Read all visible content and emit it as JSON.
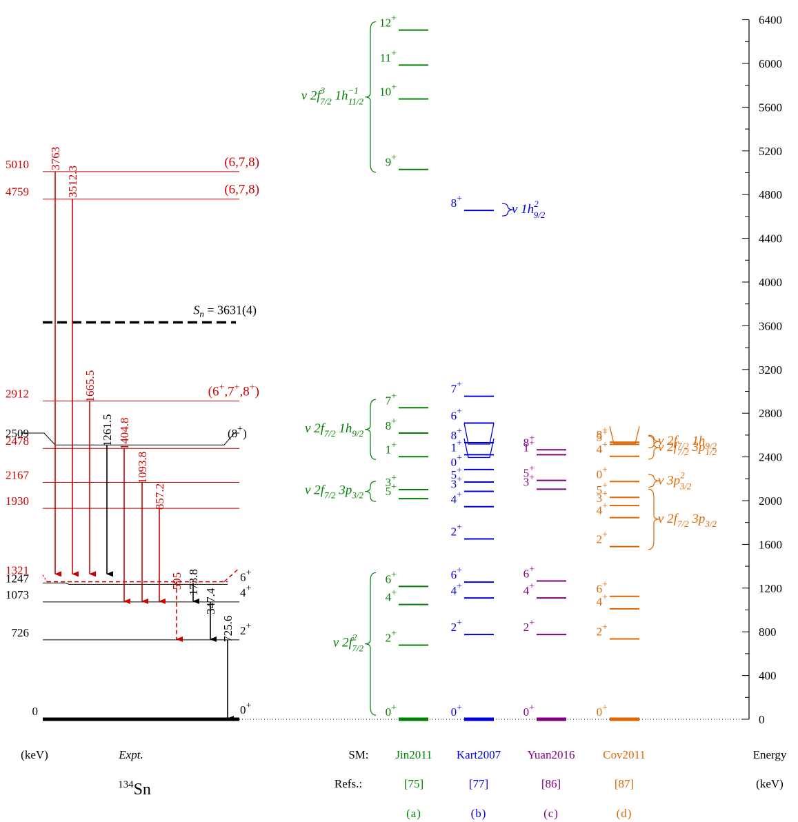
{
  "colors": {
    "expt": "#000000",
    "red": "#cc0000",
    "jin": "#008000",
    "kart": "#0000dd",
    "yuan": "#800080",
    "cov": "#dd6600"
  },
  "energy_axis": {
    "range": [
      0,
      6400
    ],
    "major_ticks": [
      0,
      400,
      800,
      1200,
      1600,
      2000,
      2400,
      2800,
      3200,
      3600,
      4000,
      4400,
      4800,
      5200,
      5600,
      6000,
      6400
    ],
    "title_line1": "Energy",
    "title_line2": "(keV)"
  },
  "footer": {
    "kev_label": "(keV)",
    "expt_label": "Expt.",
    "nucleus_mass": "134",
    "nucleus_symbol": "Sn",
    "sm_label": "SM:",
    "refs_label": "Refs.:"
  },
  "columns": [
    {
      "key": "jin",
      "name": "Jin2011",
      "ref": "[75]",
      "panel": "(a)"
    },
    {
      "key": "kart",
      "name": "Kart2007",
      "ref": "[77]",
      "panel": "(b)"
    },
    {
      "key": "yuan",
      "name": "Yuan2016",
      "ref": "[86]",
      "panel": "(c)"
    },
    {
      "key": "cov",
      "name": "Cov2011",
      "ref": "[87]",
      "panel": "(d)"
    }
  ],
  "expt": {
    "sn_label": "S",
    "sn_sub": "n",
    "sn_value": " = 3631(4)",
    "sn_energy": 3631,
    "levels": [
      {
        "energy": 0,
        "label": "0",
        "spin": "0",
        "parity": "+",
        "color": "expt",
        "thick": true
      },
      {
        "energy": 726,
        "label": "726",
        "spin": "2",
        "parity": "+",
        "color": "expt"
      },
      {
        "energy": 1073,
        "label": "1073",
        "spin": "4",
        "parity": "+",
        "color": "expt"
      },
      {
        "energy": 1247,
        "label": "1247",
        "spin": "6",
        "parity": "+",
        "color": "expt"
      },
      {
        "energy": 1321,
        "label": "1321",
        "spin": "",
        "parity": "",
        "color": "red"
      },
      {
        "energy": 1930,
        "label": "1930",
        "spin": "",
        "parity": "",
        "color": "red"
      },
      {
        "energy": 2167,
        "label": "2167",
        "spin": "",
        "parity": "",
        "color": "red"
      },
      {
        "energy": 2478,
        "label": "2478",
        "spin": "",
        "parity": "",
        "color": "red"
      },
      {
        "energy": 2509,
        "label": "2509",
        "spin": "(8",
        "parity": "+",
        "spin_close": ")",
        "color": "expt"
      },
      {
        "energy": 2912,
        "label": "2912",
        "spin": "(6+,7+,8+)",
        "color": "red"
      },
      {
        "energy": 4759,
        "label": "4759",
        "spin": "(6,7,8)",
        "color": "red"
      },
      {
        "energy": 5010,
        "label": "5010",
        "spin": "(6,7,8)",
        "color": "red"
      }
    ],
    "transitions": [
      {
        "from": 5010,
        "to": 1247,
        "label": "3763",
        "color": "red"
      },
      {
        "from": 4759,
        "to": 1247,
        "label": "3512.3",
        "color": "red"
      },
      {
        "from": 2912,
        "to": 1247,
        "label": "1665.5",
        "color": "red"
      },
      {
        "from": 2509,
        "to": 1247,
        "label": "1261.5",
        "color": "expt"
      },
      {
        "from": 2478,
        "to": 1073,
        "label": "1404.8",
        "color": "red"
      },
      {
        "from": 2167,
        "to": 1073,
        "label": "1093.8",
        "color": "red"
      },
      {
        "from": 1930,
        "to": 1073,
        "label": "857.2",
        "color": "red"
      },
      {
        "from": 1321,
        "to": 726,
        "label": "595",
        "color": "red",
        "dashed": true
      },
      {
        "from": 1247,
        "to": 1073,
        "label": "173.8",
        "color": "expt"
      },
      {
        "from": 1073,
        "to": 726,
        "label": "347.4",
        "color": "expt"
      },
      {
        "from": 726,
        "to": 0,
        "label": "725.6",
        "color": "expt"
      }
    ]
  },
  "sm_levels": {
    "jin": [
      {
        "e": 0,
        "j": "0"
      },
      {
        "e": 678,
        "j": "2"
      },
      {
        "e": 1050,
        "j": "4"
      },
      {
        "e": 1215,
        "j": "6"
      },
      {
        "e": 2018,
        "j": "5"
      },
      {
        "e": 2101,
        "j": "3"
      },
      {
        "e": 2402,
        "j": "1"
      },
      {
        "e": 2618,
        "j": "8"
      },
      {
        "e": 2850,
        "j": "7"
      },
      {
        "e": 5030,
        "j": "9"
      },
      {
        "e": 5675,
        "j": "10"
      },
      {
        "e": 5985,
        "j": "11"
      },
      {
        "e": 6305,
        "j": "12"
      }
    ],
    "kart": [
      {
        "e": 0,
        "j": "0"
      },
      {
        "e": 775,
        "j": "2"
      },
      {
        "e": 1110,
        "j": "4"
      },
      {
        "e": 1255,
        "j": "6"
      },
      {
        "e": 1650,
        "j": "2"
      },
      {
        "e": 1945,
        "j": "4"
      },
      {
        "e": 2085,
        "j": "3"
      },
      {
        "e": 2170,
        "j": "5"
      },
      {
        "e": 2285,
        "j": "0"
      },
      {
        "e": 2420,
        "j": "1"
      },
      {
        "e": 2530,
        "j": "8"
      },
      {
        "e": 2710,
        "j": "6"
      },
      {
        "e": 2955,
        "j": "7"
      },
      {
        "e": 4655,
        "j": "8"
      }
    ],
    "yuan": [
      {
        "e": 0,
        "j": "0"
      },
      {
        "e": 775,
        "j": "2"
      },
      {
        "e": 1110,
        "j": "4"
      },
      {
        "e": 1265,
        "j": "6"
      },
      {
        "e": 2105,
        "j": "3"
      },
      {
        "e": 2185,
        "j": "5"
      },
      {
        "e": 2420,
        "j": "1"
      },
      {
        "e": 2465,
        "j": "8"
      }
    ],
    "cov": [
      {
        "e": 0,
        "j": "0"
      },
      {
        "e": 735,
        "j": "2"
      },
      {
        "e": 1010,
        "j": "4"
      },
      {
        "e": 1125,
        "j": "6"
      },
      {
        "e": 1580,
        "j": "2"
      },
      {
        "e": 1845,
        "j": "4"
      },
      {
        "e": 1955,
        "j": "3"
      },
      {
        "e": 2030,
        "j": "5"
      },
      {
        "e": 2175,
        "j": "0"
      },
      {
        "e": 2405,
        "j": "4"
      },
      {
        "e": 2515,
        "j": "3"
      },
      {
        "e": 2535,
        "j": "8"
      }
    ]
  },
  "configs": [
    {
      "col": "jin",
      "side": "left",
      "e_low": 5030,
      "e_high": 6305,
      "text": "ν 2f",
      "sub1": "7/2",
      "sup1": "3",
      "mid": " 1h",
      "sub2": "11/2",
      "sup2": "−1"
    },
    {
      "col": "jin",
      "side": "left",
      "e_low": 2402,
      "e_high": 2850,
      "text": "ν 2f",
      "sub1": "7/2",
      "mid": " 1h",
      "sub2": "9/2"
    },
    {
      "col": "jin",
      "side": "left",
      "e_low": 2018,
      "e_high": 2101,
      "text": "ν 2f",
      "sub1": "7/2",
      "mid": " 3p",
      "sub2": "3/2"
    },
    {
      "col": "jin",
      "side": "left",
      "e_low": 0,
      "e_high": 1215,
      "text": "ν 2f",
      "sup1": "2",
      "sub1": "7/2"
    },
    {
      "col": "kart",
      "side": "right",
      "e_low": 4655,
      "e_high": 4655,
      "text": "ν 1h",
      "sup1": "2",
      "sub1": "9/2"
    },
    {
      "col": "cov",
      "side": "right",
      "e_low": 2535,
      "e_high": 2535,
      "text": "ν 2f",
      "sub1": "7/2",
      "mid": " 1h",
      "sub2": "9/2"
    },
    {
      "col": "cov",
      "side": "right",
      "e_low": 2405,
      "e_high": 2515,
      "text": "ν 2f",
      "sub1": "7/2",
      "mid": " 3p",
      "sub2": "1/2"
    },
    {
      "col": "cov",
      "side": "right",
      "e_low": 2175,
      "e_high": 2175,
      "text": "ν 3p",
      "sup1": "2",
      "sub1": "3/2"
    },
    {
      "col": "cov",
      "side": "right",
      "e_low": 1580,
      "e_high": 2030,
      "text": "ν 2f",
      "sub1": "7/2",
      "mid": " 3p",
      "sub2": "3/2"
    }
  ]
}
